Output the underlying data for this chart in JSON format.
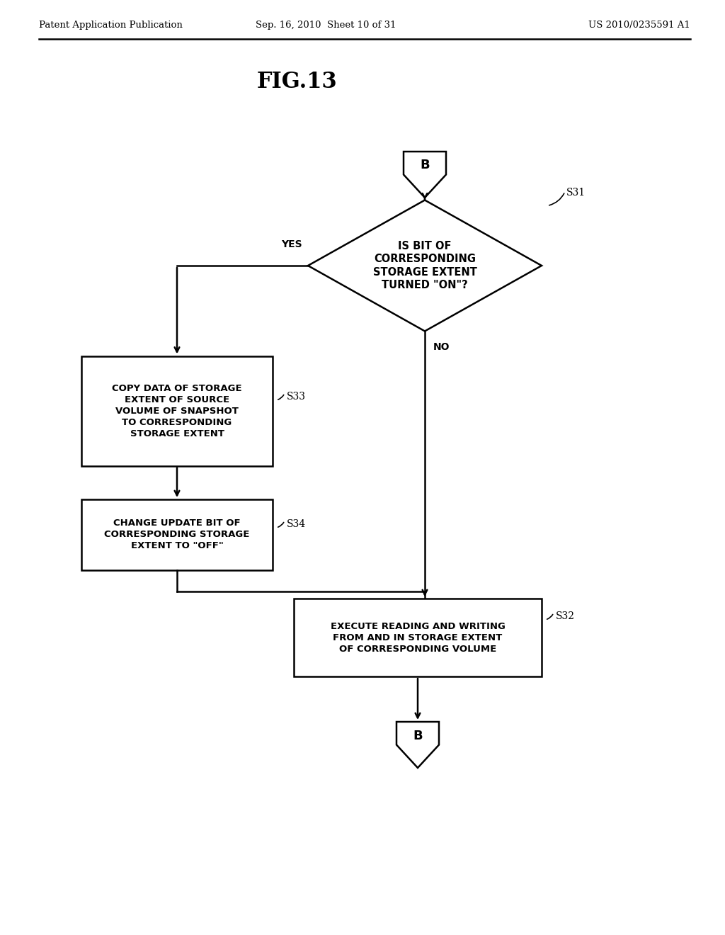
{
  "title": "FIG.13",
  "header_left": "Patent Application Publication",
  "header_mid": "Sep. 16, 2010  Sheet 10 of 31",
  "header_right": "US 2010/0235591 A1",
  "bg_color": "#ffffff",
  "connector_top_label": "B",
  "connector_bottom_label": "B",
  "diamond_text": "IS BIT OF\nCORRESPONDING\nSTORAGE EXTENT\nTURNED \"ON\"?",
  "diamond_label": "S31",
  "box1_text": "COPY DATA OF STORAGE\nEXTENT OF SOURCE\nVOLUME OF SNAPSHOT\nTO CORRESPONDING\nSTORAGE EXTENT",
  "box1_label": "S33",
  "box2_text": "CHANGE UPDATE BIT OF\nCORRESPONDING STORAGE\nEXTENT TO \"OFF\"",
  "box2_label": "S34",
  "box3_text": "EXECUTE READING AND WRITING\nFROM AND IN STORAGE EXTENT\nOF CORRESPONDING VOLUME",
  "box3_label": "S32",
  "yes_label": "YES",
  "no_label": "NO"
}
